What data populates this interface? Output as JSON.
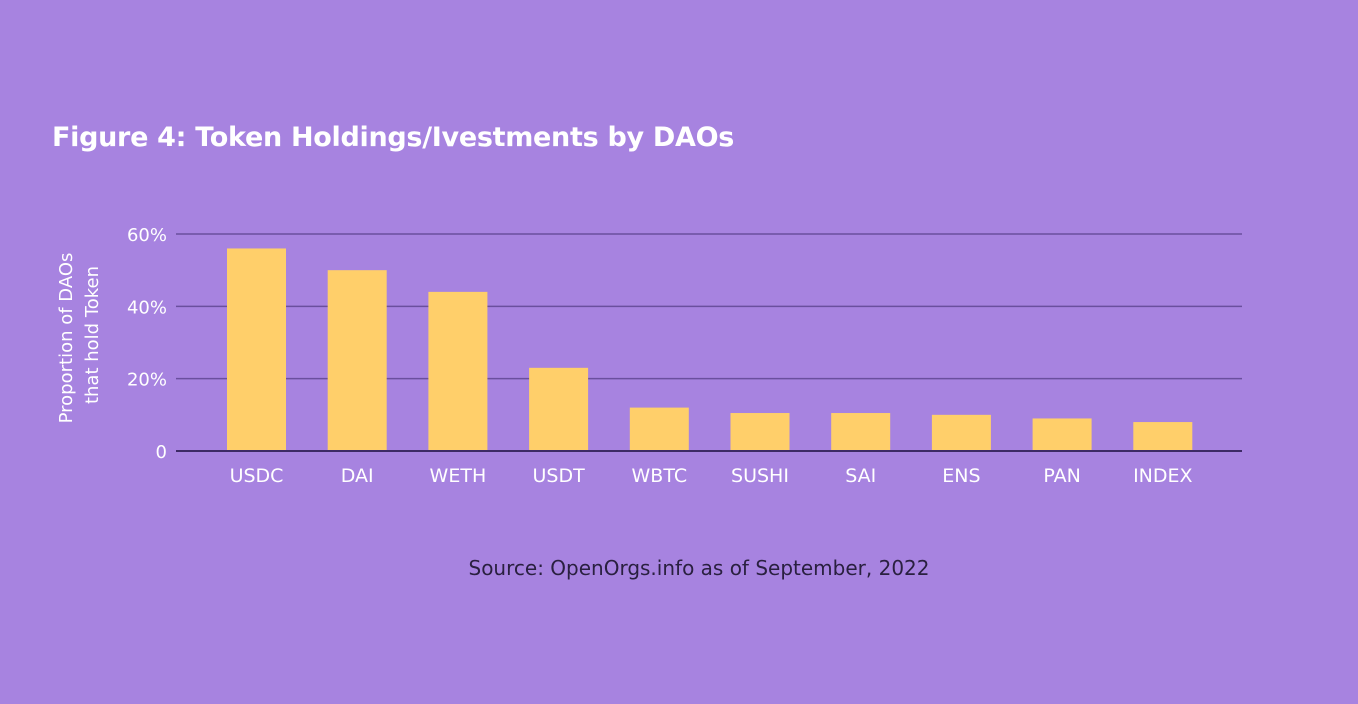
{
  "title": "Figure 4: Token Holdings/Ivestments by DAOs",
  "source": "Source: OpenOrgs.info as of September, 2022",
  "colors": {
    "background": "#a783e0",
    "bar": "#ffcf6a",
    "gridline": "#6a4f9e",
    "text": "#ffffff"
  },
  "chart_data": {
    "type": "bar",
    "title": "Figure 4: Token Holdings/Ivestments by DAOs",
    "xlabel": "",
    "ylabel_lines": [
      "Proportion of DAOs",
      "that hold Token"
    ],
    "categories": [
      "USDC",
      "DAI",
      "WETH",
      "USDT",
      "WBTC",
      "SUSHI",
      "SAI",
      "ENS",
      "PAN",
      "INDEX"
    ],
    "values": [
      56,
      50,
      44,
      23,
      12,
      10.5,
      10.5,
      10,
      9,
      8
    ],
    "unit": "%",
    "ylim": [
      0,
      60
    ],
    "yticks": [
      0,
      20,
      40,
      60
    ],
    "ytick_labels": [
      "0",
      "20%",
      "40%",
      "60%"
    ],
    "grid": true,
    "legend": "none"
  }
}
